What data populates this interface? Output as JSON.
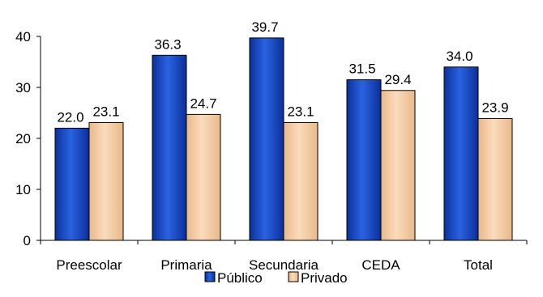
{
  "chart_data": {
    "type": "bar",
    "title": "",
    "xlabel": "",
    "ylabel": "",
    "ylim": [
      0,
      40
    ],
    "yticks": [
      0,
      10,
      20,
      30,
      40
    ],
    "grid": false,
    "legend_position": "bottom",
    "categories": [
      "Preescolar",
      "Primaria",
      "Secundaria",
      "CEDA",
      "Total"
    ],
    "series": [
      {
        "name": "Público",
        "values": [
          22.0,
          36.3,
          39.7,
          31.5,
          34.0
        ],
        "value_labels": [
          "22.0",
          "36.3",
          "39.7",
          "31.5",
          "34.0"
        ],
        "color": "#1f4fc4"
      },
      {
        "name": "Privado",
        "values": [
          23.1,
          24.7,
          23.1,
          29.4,
          23.9
        ],
        "value_labels": [
          "23.1",
          "24.7",
          "23.1",
          "29.4",
          "23.9"
        ],
        "color": "#f5c9a0"
      }
    ]
  }
}
